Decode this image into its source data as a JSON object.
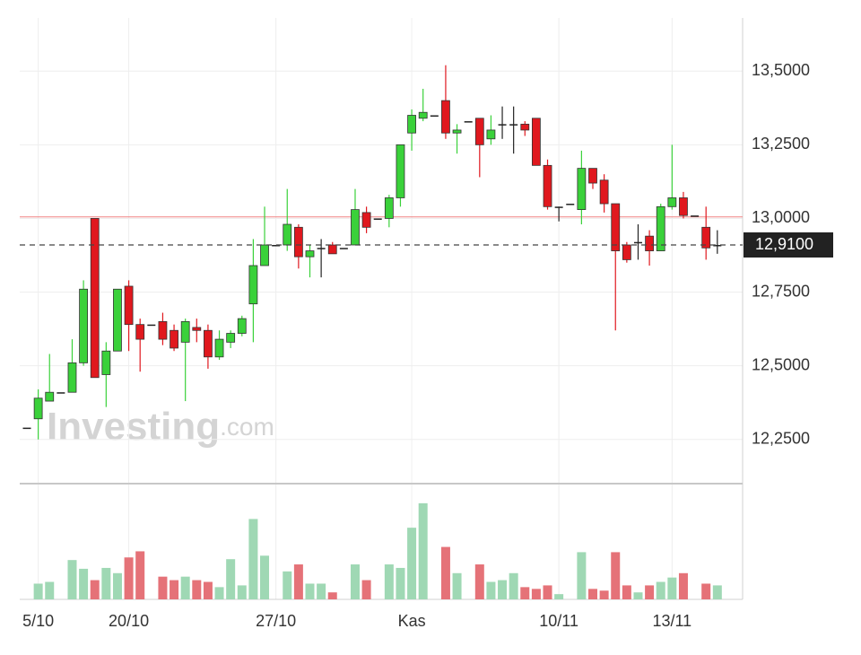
{
  "chart_data": {
    "type": "candlestick",
    "watermark": "Investing",
    "watermark_suffix": ".com",
    "categories": [
      null,
      "5/10",
      null,
      null,
      null,
      null,
      null,
      null,
      null,
      "20/10",
      null,
      null,
      null,
      null,
      null,
      null,
      null,
      null,
      null,
      null,
      null,
      null,
      "27/10",
      null,
      null,
      null,
      null,
      null,
      null,
      null,
      null,
      null,
      null,
      null,
      "Kas",
      null,
      null,
      null,
      null,
      null,
      null,
      null,
      null,
      null,
      null,
      null,
      null,
      "10/11",
      null,
      null,
      null,
      null,
      null,
      null,
      null,
      null,
      null,
      "13/11",
      null,
      null,
      null,
      null
    ],
    "open": [
      12.29,
      12.32,
      12.38,
      12.41,
      12.41,
      12.51,
      13.0,
      12.47,
      12.55,
      12.77,
      12.64,
      12.64,
      12.65,
      12.62,
      12.58,
      12.63,
      12.62,
      12.53,
      12.58,
      12.61,
      12.71,
      12.84,
      12.91,
      12.91,
      12.97,
      12.87,
      12.9,
      12.91,
      12.9,
      12.91,
      13.02,
      13.0,
      13.0,
      13.07,
      13.29,
      13.34,
      13.35,
      13.4,
      13.29,
      13.33,
      13.34,
      13.27,
      13.32,
      13.32,
      13.32,
      13.34,
      13.18,
      13.04,
      13.05,
      13.03,
      13.17,
      13.13,
      13.05,
      12.91,
      12.92,
      12.94,
      12.89,
      13.04,
      13.07,
      13.01,
      12.97,
      12.91
    ],
    "high": [
      12.29,
      12.42,
      12.54,
      12.41,
      12.59,
      12.79,
      13.0,
      12.58,
      12.76,
      12.79,
      12.66,
      12.64,
      12.68,
      12.64,
      12.66,
      12.66,
      12.64,
      12.62,
      12.62,
      12.67,
      12.93,
      13.04,
      12.91,
      13.1,
      12.98,
      12.91,
      12.93,
      12.92,
      12.9,
      13.1,
      13.04,
      13.0,
      13.08,
      13.25,
      13.37,
      13.44,
      13.35,
      13.52,
      13.32,
      13.33,
      13.34,
      13.35,
      13.38,
      13.38,
      13.33,
      13.34,
      13.2,
      13.04,
      13.05,
      13.23,
      13.17,
      13.15,
      13.05,
      12.92,
      12.98,
      12.96,
      13.05,
      13.25,
      13.09,
      13.01,
      13.04,
      12.96
    ],
    "low": [
      12.29,
      12.25,
      12.38,
      12.41,
      12.41,
      12.5,
      12.46,
      12.36,
      12.55,
      12.55,
      12.48,
      12.64,
      12.57,
      12.55,
      12.38,
      12.58,
      12.49,
      12.52,
      12.56,
      12.6,
      12.58,
      12.84,
      12.91,
      12.89,
      12.83,
      12.8,
      12.8,
      12.88,
      12.9,
      12.91,
      12.95,
      13.0,
      12.97,
      13.04,
      13.23,
      13.33,
      13.35,
      13.27,
      13.22,
      13.33,
      13.14,
      13.25,
      13.27,
      13.22,
      13.28,
      13.18,
      13.03,
      12.99,
      13.05,
      12.98,
      13.1,
      13.02,
      12.62,
      12.85,
      12.86,
      12.84,
      12.89,
      13.03,
      13.0,
      13.01,
      12.86,
      12.88
    ],
    "close": [
      12.29,
      12.39,
      12.41,
      12.41,
      12.51,
      12.76,
      12.46,
      12.55,
      12.76,
      12.64,
      12.59,
      12.64,
      12.59,
      12.56,
      12.65,
      12.62,
      12.53,
      12.59,
      12.61,
      12.66,
      12.84,
      12.91,
      12.91,
      12.98,
      12.87,
      12.89,
      12.9,
      12.88,
      12.9,
      13.03,
      12.97,
      13.0,
      13.07,
      13.25,
      13.35,
      13.36,
      13.35,
      13.29,
      13.3,
      13.33,
      13.25,
      13.3,
      13.32,
      13.32,
      13.3,
      13.18,
      13.04,
      13.04,
      13.05,
      13.17,
      13.12,
      13.05,
      12.89,
      12.86,
      12.92,
      12.89,
      13.04,
      13.07,
      13.01,
      13.01,
      12.9,
      12.91
    ],
    "volume": [
      0,
      18,
      20,
      0,
      45,
      35,
      22,
      36,
      30,
      48,
      55,
      0,
      26,
      22,
      26,
      22,
      20,
      14,
      46,
      16,
      92,
      50,
      0,
      32,
      40,
      18,
      18,
      8,
      0,
      40,
      22,
      0,
      40,
      36,
      82,
      110,
      0,
      60,
      30,
      0,
      40,
      20,
      22,
      30,
      14,
      12,
      16,
      6,
      0,
      54,
      12,
      10,
      54,
      16,
      8,
      16,
      20,
      25,
      30,
      0,
      18,
      16
    ],
    "up_color": "#3ad13a",
    "down_color": "#e0181e",
    "volume_up_color": "#9fd8b4",
    "volume_down_color": "#e57278",
    "ylim": [
      12.1,
      13.65
    ],
    "yticks": [
      {
        "value": 12.25,
        "label": "12,2500"
      },
      {
        "value": 12.5,
        "label": "12,5000"
      },
      {
        "value": 12.75,
        "label": "12,7500"
      },
      {
        "value": 13.0,
        "label": "13,0000"
      },
      {
        "value": 13.25,
        "label": "13,2500"
      },
      {
        "value": 13.5,
        "label": "13,5000"
      }
    ],
    "volume_lim": [
      0,
      115
    ],
    "reference_line": 13.005,
    "current_price": {
      "value": 12.91,
      "label": "12,9100"
    },
    "grid": true
  }
}
